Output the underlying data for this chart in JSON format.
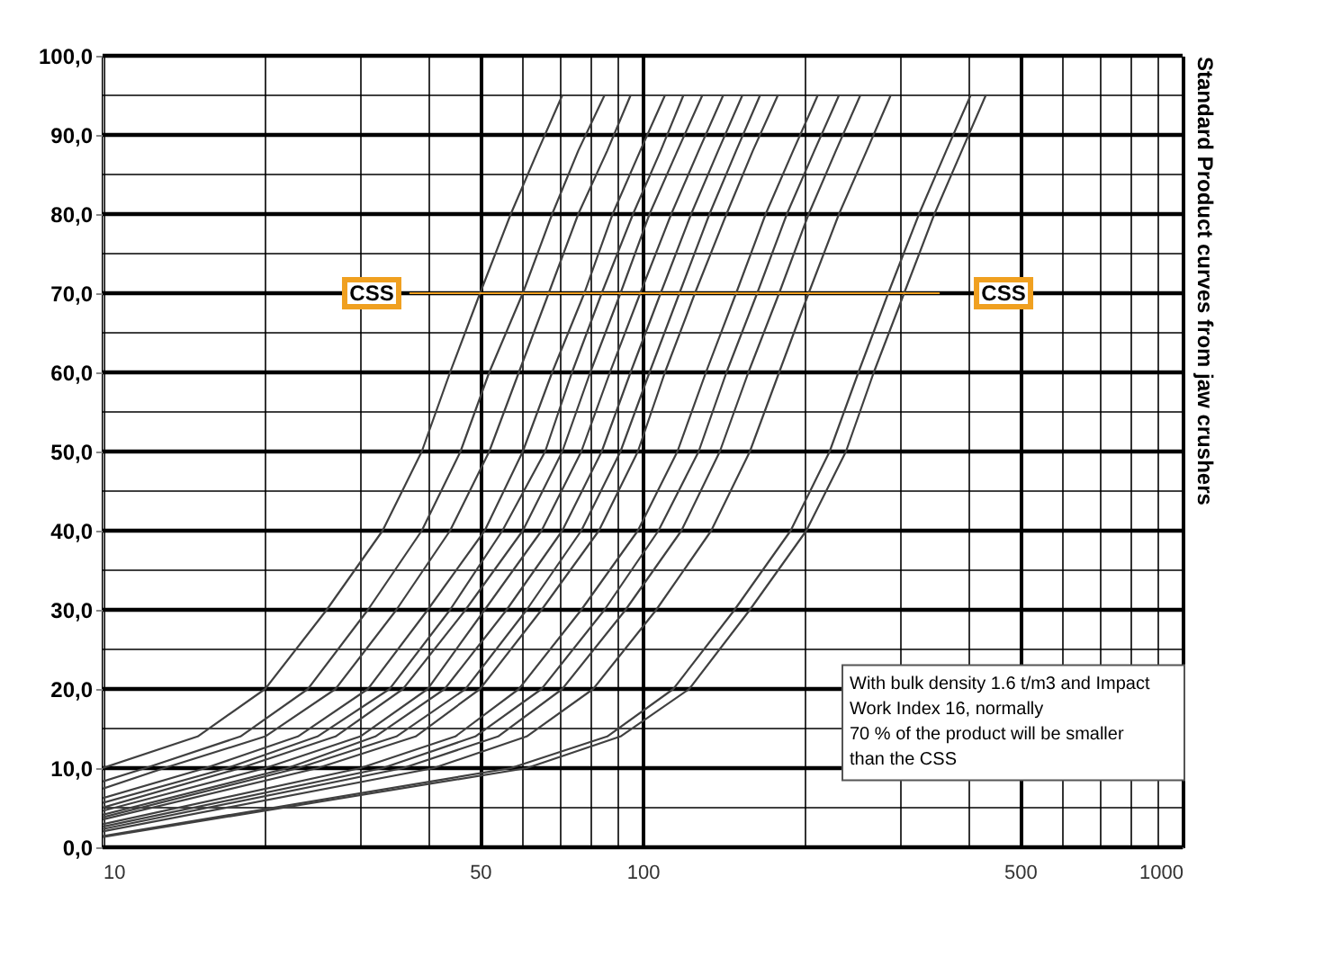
{
  "chart_data": {
    "type": "line",
    "ylabel": "Standard Product curves from jaw crushers",
    "log": "x",
    "grid": true,
    "xlim": [
      10,
      1000
    ],
    "ylim": [
      0,
      100
    ],
    "xticks": [
      10,
      {
        "value": 20,
        "label": null
      },
      {
        "value": 30,
        "label": null
      },
      {
        "value": 40,
        "label": null
      },
      50,
      {
        "value": 60,
        "label": null
      },
      {
        "value": 70,
        "label": null
      },
      {
        "value": 80,
        "label": null
      },
      {
        "value": 90,
        "label": null
      },
      100,
      {
        "value": 200,
        "label": null
      },
      {
        "value": 300,
        "label": null
      },
      {
        "value": 400,
        "label": null
      },
      500,
      {
        "value": 600,
        "label": null
      },
      {
        "value": 700,
        "label": null
      },
      {
        "value": 800,
        "label": null
      },
      {
        "value": 900,
        "label": null
      },
      1000
    ],
    "yticks": [
      {
        "value": 0,
        "label": "0,0"
      },
      {
        "value": 5,
        "label": null
      },
      {
        "value": 10,
        "label": "10,0"
      },
      {
        "value": 15,
        "label": null
      },
      {
        "value": 20,
        "label": "20,0"
      },
      {
        "value": 25,
        "label": null
      },
      {
        "value": 30,
        "label": "30,0"
      },
      {
        "value": 35,
        "label": null
      },
      {
        "value": 40,
        "label": "40,0"
      },
      {
        "value": 45,
        "label": null
      },
      {
        "value": 50,
        "label": "50,0"
      },
      {
        "value": 55,
        "label": null
      },
      {
        "value": 60,
        "label": "60,0"
      },
      {
        "value": 65,
        "label": null
      },
      {
        "value": 70,
        "label": "70,0"
      },
      {
        "value": 75,
        "label": null
      },
      {
        "value": 80,
        "label": "80,0"
      },
      {
        "value": 85,
        "label": null
      },
      {
        "value": 90,
        "label": "90,0"
      },
      {
        "value": 95,
        "label": null
      },
      {
        "value": 100,
        "label": "100,0"
      }
    ],
    "series": [
      {
        "color": "#404040",
        "x": [
          10,
          15,
          20,
          26,
          33,
          39,
          44,
          50,
          57,
          64,
          71
        ],
        "values": [
          10,
          14,
          20,
          30,
          40,
          50,
          60,
          70,
          80,
          88,
          95
        ]
      },
      {
        "color": "#404040",
        "x": [
          10,
          12,
          18,
          24,
          31,
          39,
          46,
          52,
          60,
          68,
          76,
          85
        ],
        "values": [
          8.3,
          10,
          14,
          20,
          30,
          40,
          50,
          60,
          70,
          80,
          88,
          95
        ]
      },
      {
        "color": "#404040",
        "x": [
          10,
          13,
          20,
          27,
          35,
          44,
          52,
          59,
          67,
          76,
          86,
          95
        ],
        "values": [
          7.4,
          10,
          14,
          20,
          30,
          40,
          50,
          60,
          70,
          80,
          88,
          95
        ]
      },
      {
        "color": "#404040",
        "x": [
          10,
          15.5,
          23,
          31,
          40,
          51,
          60,
          68,
          78,
          88,
          99,
          110
        ],
        "values": [
          6.2,
          10,
          14,
          20,
          30,
          40,
          50,
          60,
          70,
          80,
          88,
          95
        ]
      },
      {
        "color": "#404040",
        "x": [
          10,
          17,
          25,
          34,
          44,
          55,
          66,
          74,
          84,
          96,
          108,
          119
        ],
        "values": [
          5.6,
          10,
          14,
          20,
          30,
          40,
          50,
          60,
          70,
          80,
          88,
          95
        ]
      },
      {
        "color": "#404040",
        "x": [
          10,
          18,
          27,
          36,
          47,
          60,
          71,
          80,
          91,
          103,
          116,
          129
        ],
        "values": [
          5.0,
          10,
          14,
          20,
          30,
          40,
          50,
          60,
          70,
          80,
          88,
          95
        ]
      },
      {
        "color": "#404040",
        "x": [
          10,
          20,
          30,
          40,
          51,
          65,
          77,
          87,
          99,
          113,
          127,
          141
        ],
        "values": [
          4.6,
          10,
          14,
          20,
          30,
          40,
          50,
          60,
          70,
          80,
          88,
          95
        ]
      },
      {
        "color": "#404040",
        "x": [
          10,
          22,
          32,
          43,
          56,
          71,
          84,
          95,
          108,
          123,
          138,
          153
        ],
        "values": [
          4.1,
          10,
          14,
          20,
          30,
          40,
          50,
          60,
          70,
          80,
          88,
          95
        ]
      },
      {
        "color": "#404040",
        "x": [
          10,
          23,
          35,
          47,
          61,
          77,
          91,
          103,
          117,
          133,
          149,
          165
        ],
        "values": [
          3.8,
          10,
          14,
          20,
          30,
          40,
          50,
          60,
          70,
          80,
          88,
          95
        ]
      },
      {
        "color": "#404040",
        "x": [
          10,
          25,
          38,
          50,
          65,
          83,
          98,
          110,
          125,
          143,
          160,
          178
        ],
        "values": [
          3.5,
          10,
          14,
          20,
          30,
          40,
          50,
          60,
          70,
          80,
          88,
          95
        ]
      },
      {
        "color": "#404040",
        "x": [
          10,
          30,
          45,
          59,
          77,
          98,
          116,
          131,
          149,
          169,
          190,
          211
        ],
        "values": [
          2.9,
          10,
          14,
          20,
          30,
          40,
          50,
          60,
          70,
          80,
          88,
          95
        ]
      },
      {
        "color": "#404040",
        "x": [
          10,
          33,
          49,
          65,
          85,
          107,
          127,
          143,
          163,
          185,
          208,
          231
        ],
        "values": [
          2.6,
          10,
          14,
          20,
          30,
          40,
          50,
          60,
          70,
          80,
          88,
          95
        ]
      },
      {
        "color": "#404040",
        "x": [
          10,
          36,
          54,
          71,
          93,
          118,
          139,
          157,
          179,
          203,
          228,
          253
        ],
        "values": [
          2.3,
          10,
          14,
          20,
          30,
          40,
          50,
          60,
          70,
          80,
          88,
          95
        ]
      },
      {
        "color": "#404040",
        "x": [
          10,
          41,
          61,
          81,
          106,
          134,
          158,
          179,
          203,
          231,
          260,
          288
        ],
        "values": [
          2.0,
          10,
          14,
          20,
          30,
          40,
          50,
          60,
          70,
          80,
          88,
          95
        ]
      },
      {
        "color": "#404040",
        "x": [
          10,
          57,
          86,
          114,
          148,
          188,
          222,
          251,
          285,
          325,
          365,
          405
        ],
        "values": [
          1.4,
          10,
          14,
          20,
          30,
          40,
          50,
          60,
          70,
          80,
          88,
          95
        ]
      },
      {
        "color": "#404040",
        "x": [
          10,
          61,
          91,
          122,
          158,
          201,
          238,
          268,
          305,
          347,
          390,
          432
        ],
        "values": [
          1.3,
          10,
          14,
          20,
          30,
          40,
          50,
          60,
          70,
          80,
          88,
          95
        ]
      },
      {
        "color": "#f0a020",
        "x": [
          37,
          355
        ],
        "values": [
          70,
          70
        ]
      }
    ],
    "annotations": [
      {
        "text": "CSS",
        "x": 31.5,
        "y": 70
      },
      {
        "text": "CSS",
        "x": 466,
        "y": 70
      },
      "With bulk density 1.6 t/m3 and Impact\nWork Index 16, normally\n70 % of the product will be smaller\nthan the CSS"
    ]
  }
}
